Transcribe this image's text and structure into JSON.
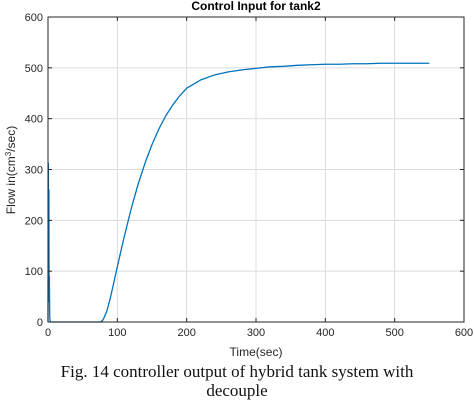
{
  "chart_data": {
    "type": "line",
    "title": "Control Input for tank2",
    "xlabel": "Time(sec)",
    "ylabel_parts": [
      "Flow in(cm",
      "3",
      "/sec)"
    ],
    "xlim": [
      0,
      600
    ],
    "ylim": [
      0,
      600
    ],
    "xticks": [
      0,
      100,
      200,
      300,
      400,
      500,
      600
    ],
    "yticks": [
      0,
      100,
      200,
      300,
      400,
      500,
      600
    ],
    "xtick_labels": [
      "0",
      "100",
      "200",
      "300",
      "400",
      "500",
      "600"
    ],
    "ytick_labels": [
      "0",
      "100",
      "200",
      "300",
      "400",
      "500",
      "600"
    ],
    "grid": true,
    "line_color": "#0072bd",
    "series": [
      {
        "x": [
          0,
          0.5,
          1.0,
          1.3,
          1.6,
          2.0,
          2.5,
          3.0,
          4,
          10,
          20,
          30,
          40,
          50,
          60,
          70,
          75,
          78,
          80,
          85,
          90,
          95,
          100,
          110,
          120,
          130,
          140,
          150,
          160,
          170,
          180,
          190,
          200,
          220,
          240,
          260,
          280,
          300,
          320,
          340,
          360,
          380,
          400,
          420,
          440,
          460,
          480,
          500,
          520,
          540,
          550
        ],
        "y": [
          0,
          312,
          150,
          260,
          40,
          90,
          10,
          2,
          0,
          0,
          0,
          0,
          0,
          0,
          0,
          0,
          0,
          2,
          6,
          22,
          48,
          78,
          109,
          168,
          223,
          271,
          313,
          349,
          380,
          406,
          427,
          445,
          460,
          476,
          486,
          492,
          496,
          499,
          502,
          503,
          505,
          506,
          507,
          507,
          508,
          508,
          509,
          509,
          509,
          509,
          509
        ]
      }
    ]
  },
  "caption": {
    "line1": "Fig. 14 controller output of hybrid tank system with",
    "line2": "decouple"
  }
}
